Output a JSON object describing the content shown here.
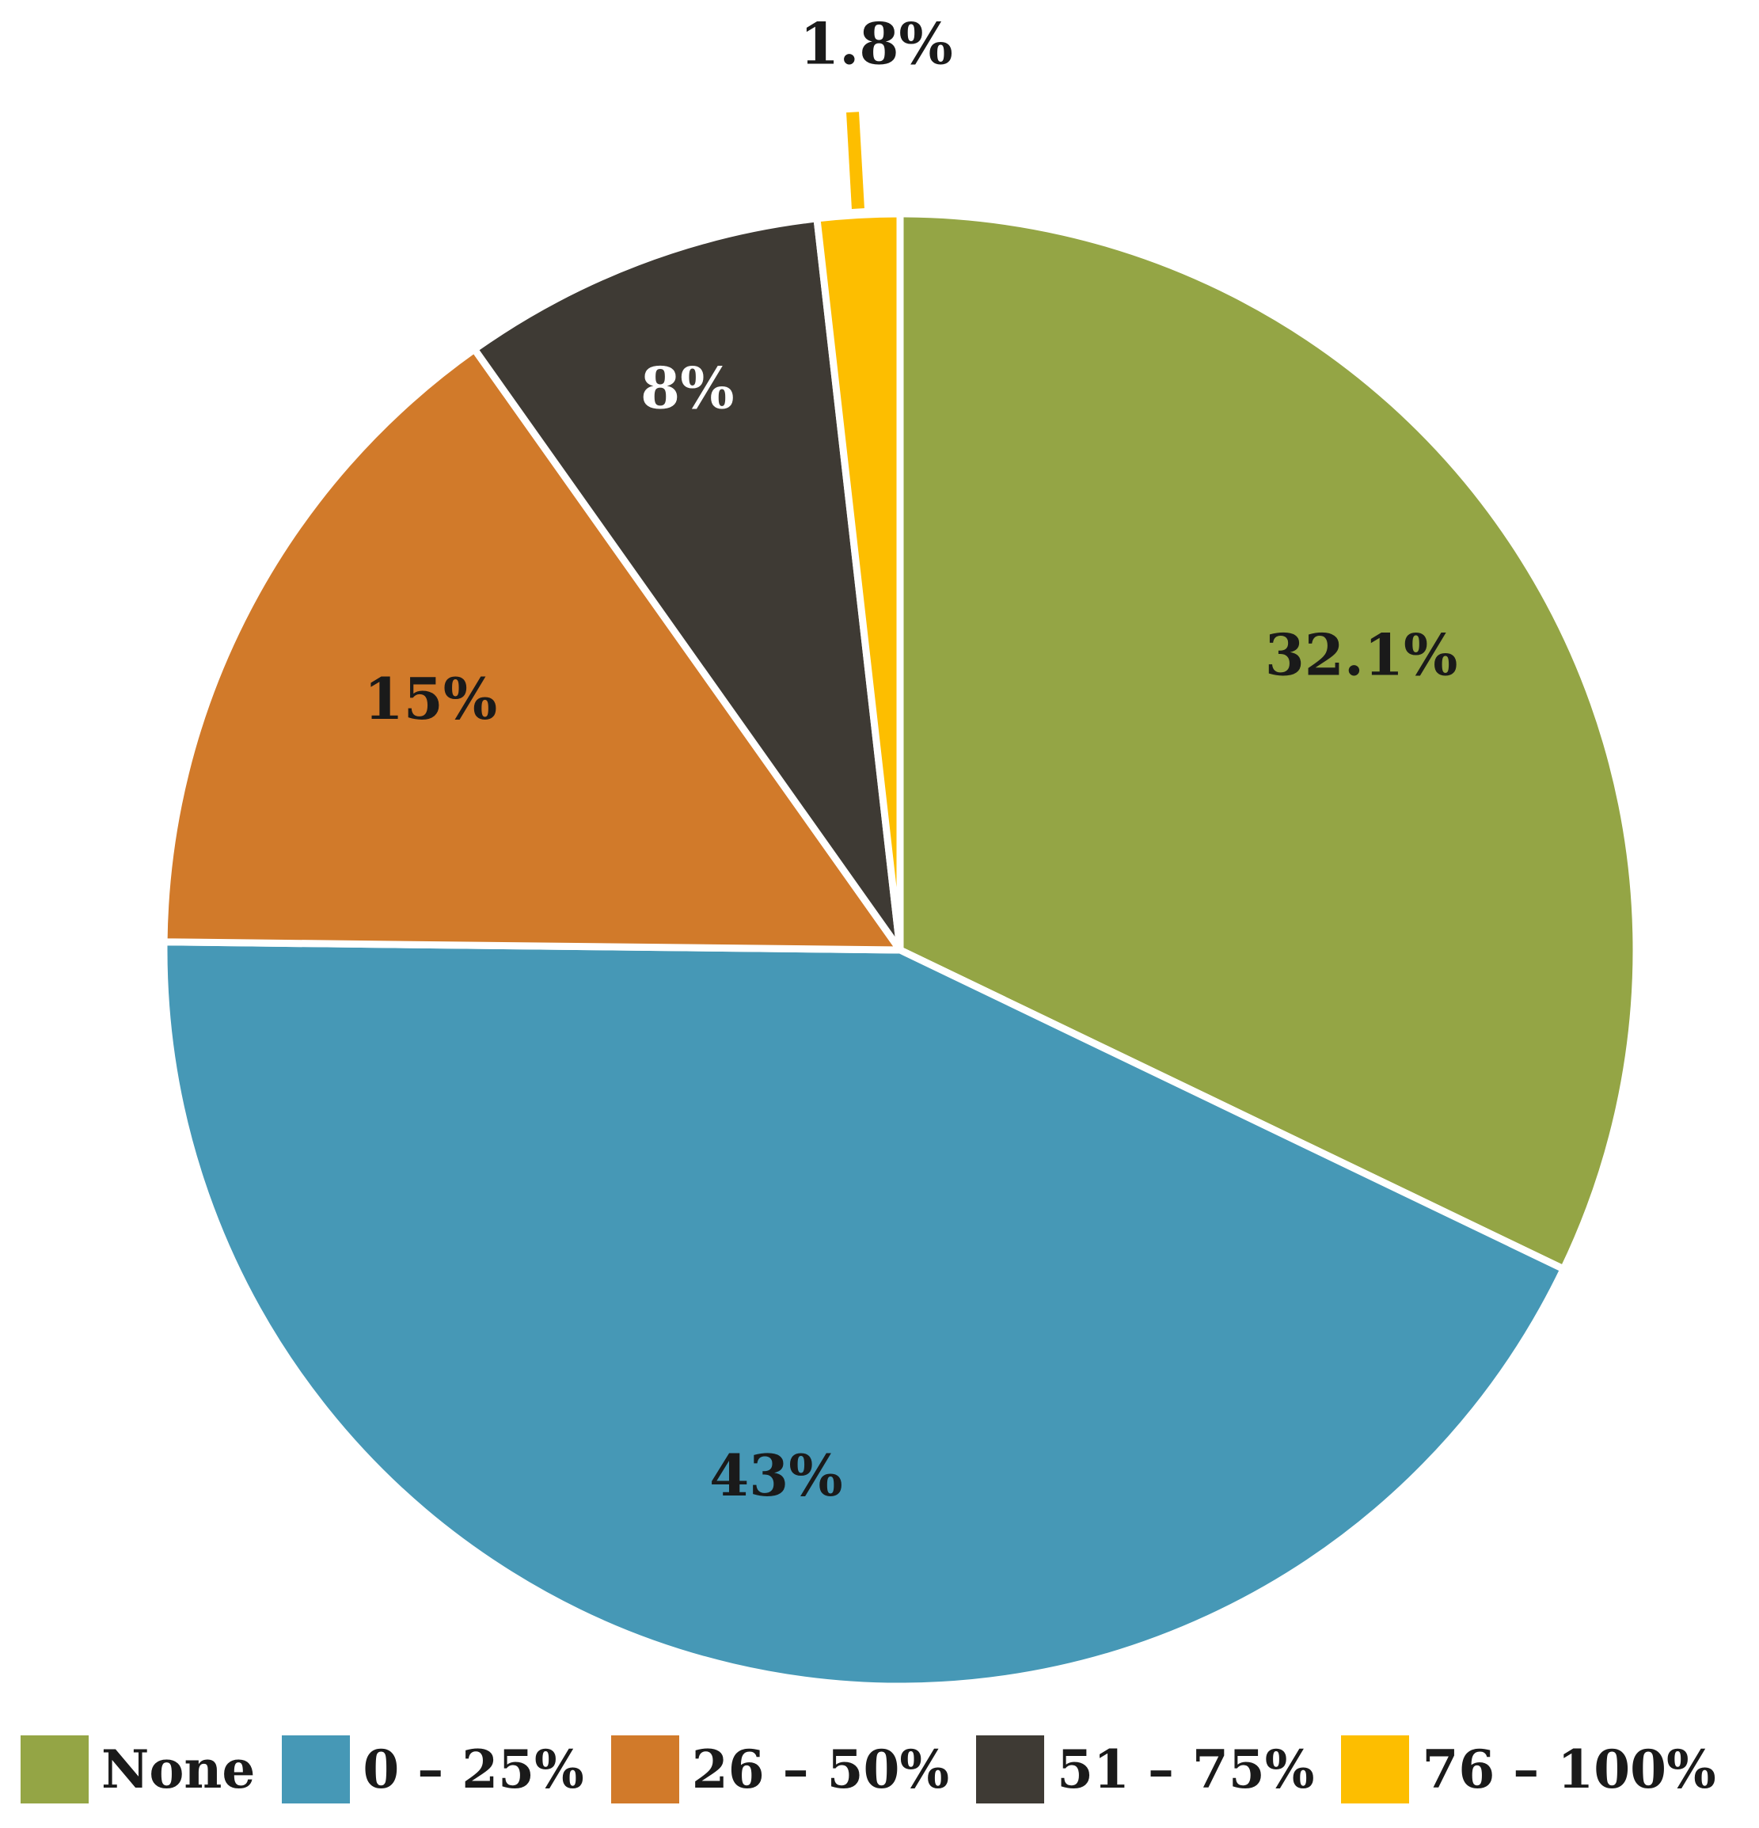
{
  "chart_data": {
    "type": "pie",
    "title": "",
    "start_angle_deg": 0,
    "direction": "clockwise",
    "legend_position": "bottom",
    "slices": [
      {
        "category": "None",
        "value": 32.1,
        "label": "32.1%",
        "color": "#94A545",
        "label_color": "#1a1a1a"
      },
      {
        "category": "0 – 25%",
        "value": 43,
        "label": "43%",
        "color": "#4698B6",
        "label_color": "#1a1a1a"
      },
      {
        "category": "26 – 50%",
        "value": 15,
        "label": "15%",
        "color": "#D17A2A",
        "label_color": "#1a1a1a"
      },
      {
        "category": "51 – 75%",
        "value": 8,
        "label": "8%",
        "color": "#3E3A34",
        "label_color": "#ffffff"
      },
      {
        "category": "76 – 100%",
        "value": 1.8,
        "label": "1.8%",
        "color": "#FDBE00",
        "label_color": "#1a1a1a"
      }
    ]
  }
}
